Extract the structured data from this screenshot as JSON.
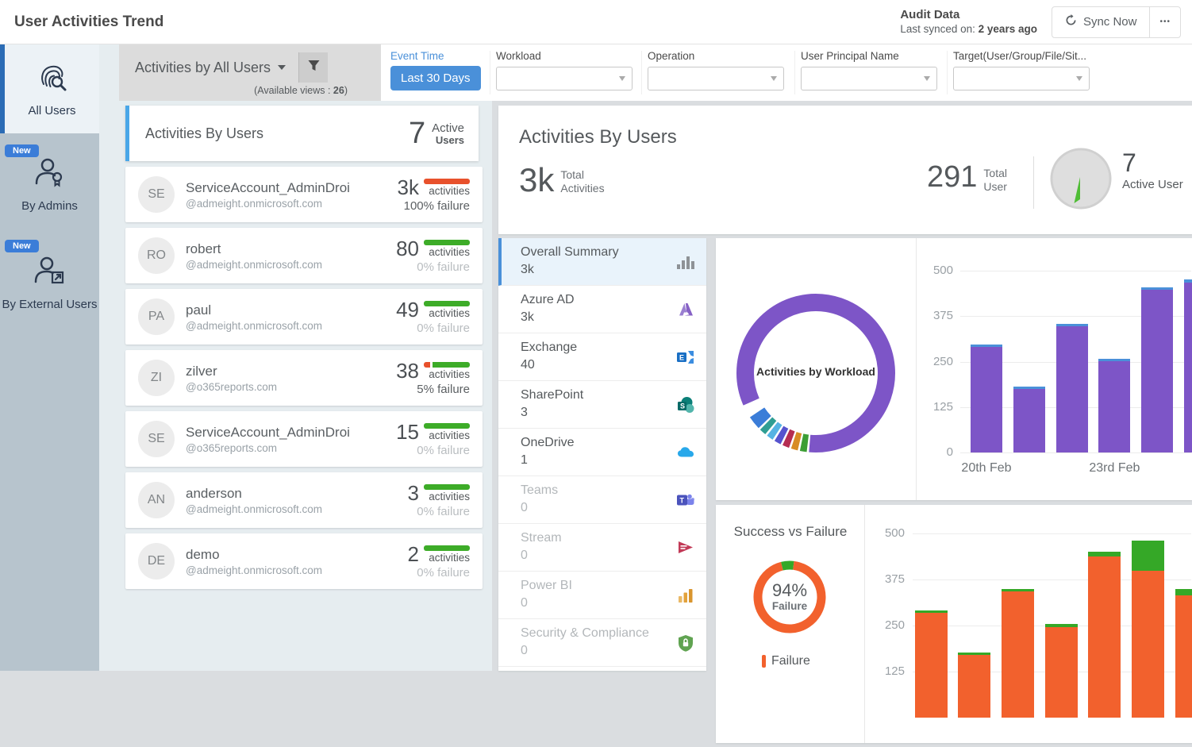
{
  "header": {
    "title": "User Activities Trend",
    "audit_label": "Audit Data",
    "last_synced_prefix": "Last synced on:",
    "last_synced_value": "2 years ago",
    "sync_button": "Sync Now",
    "more_button": "•••"
  },
  "sidebar": {
    "items": [
      {
        "label": "All Users",
        "badge": "",
        "selected": true
      },
      {
        "label": "By Admins",
        "badge": "New",
        "selected": false
      },
      {
        "label": "By External Users",
        "badge": "New",
        "selected": false
      }
    ]
  },
  "view_selector": {
    "title": "Activities by All Users",
    "note_prefix": "(Available views : ",
    "note_count": "26",
    "note_suffix": ")"
  },
  "filters": {
    "event_time_label": "Event Time",
    "event_time_value": "Last 30 Days",
    "fields": [
      {
        "label": "Workload",
        "value": ""
      },
      {
        "label": "Operation",
        "value": ""
      },
      {
        "label": "User Principal Name",
        "value": ""
      },
      {
        "label": "Target(User/Group/File/Sit...",
        "value": ""
      }
    ]
  },
  "list_header": {
    "title": "Activities By Users",
    "value": "7",
    "label_top": "Active",
    "label_bottom": "Users"
  },
  "users": [
    {
      "initials": "SE",
      "name": "ServiceAccount_AdminDroid",
      "email": "@admeight.onmicrosoft.com",
      "count": "3k",
      "unit": "activities",
      "failure_text": "100% failure",
      "failure_pct": 100
    },
    {
      "initials": "RO",
      "name": "robert",
      "email": "@admeight.onmicrosoft.com",
      "count": "80",
      "unit": "activities",
      "failure_text": "0% failure",
      "failure_pct": 0
    },
    {
      "initials": "PA",
      "name": "paul",
      "email": "@admeight.onmicrosoft.com",
      "count": "49",
      "unit": "activities",
      "failure_text": "0% failure",
      "failure_pct": 0
    },
    {
      "initials": "ZI",
      "name": "zilver",
      "email": "@o365reports.com",
      "count": "38",
      "unit": "activities",
      "failure_text": "5% failure",
      "failure_pct": 5
    },
    {
      "initials": "SE",
      "name": "ServiceAccount_AdminDroid",
      "email": "@o365reports.com",
      "count": "15",
      "unit": "activities",
      "failure_text": "0% failure",
      "failure_pct": 0
    },
    {
      "initials": "AN",
      "name": "anderson",
      "email": "@admeight.onmicrosoft.com",
      "count": "3",
      "unit": "activities",
      "failure_text": "0% failure",
      "failure_pct": 0
    },
    {
      "initials": "DE",
      "name": "demo",
      "email": "@admeight.onmicrosoft.com",
      "count": "2",
      "unit": "activities",
      "failure_text": "0% failure",
      "failure_pct": 0
    }
  ],
  "summary": {
    "title": "Activities By Users",
    "total_activities": {
      "value": "3k",
      "label_top": "Total",
      "label_bottom": "Activities"
    },
    "total_users": {
      "value": "291",
      "label_top": "Total",
      "label_bottom": "User"
    },
    "active_users": {
      "value": "7",
      "label": "Active User"
    }
  },
  "workloads": [
    {
      "name": "Overall Summary",
      "value": "3k",
      "icon": "overall-summary-icon",
      "selected": true,
      "muted": false
    },
    {
      "name": "Azure AD",
      "value": "3k",
      "icon": "azure-ad-icon",
      "selected": false,
      "muted": false
    },
    {
      "name": "Exchange",
      "value": "40",
      "icon": "exchange-icon",
      "selected": false,
      "muted": false
    },
    {
      "name": "SharePoint",
      "value": "3",
      "icon": "sharepoint-icon",
      "selected": false,
      "muted": false
    },
    {
      "name": "OneDrive",
      "value": "1",
      "icon": "onedrive-icon",
      "selected": false,
      "muted": false
    },
    {
      "name": "Teams",
      "value": "0",
      "icon": "teams-icon",
      "selected": false,
      "muted": true
    },
    {
      "name": "Stream",
      "value": "0",
      "icon": "stream-icon",
      "selected": false,
      "muted": true
    },
    {
      "name": "Power BI",
      "value": "0",
      "icon": "power-bi-icon",
      "selected": false,
      "muted": true
    },
    {
      "name": "Security & Compliance",
      "value": "0",
      "icon": "security-compliance-icon",
      "selected": false,
      "muted": true
    }
  ],
  "colors": {
    "accent_blue": "#4a90d9",
    "purple": "#7d55c7",
    "orange": "#f2612d",
    "green": "#35a827",
    "bar_green": "#3dac28",
    "bar_red": "#e8512c"
  },
  "chart_data": [
    {
      "id": "workload-donut",
      "type": "pie",
      "center_label": "Activities by Workload",
      "start_deg": 246,
      "gap_deg": 1.6,
      "slices": [
        {
          "name": "Azure AD (dominant)",
          "color": "#7d55c7",
          "deg": 299
        },
        {
          "name": "slice-green",
          "color": "#3c9e35",
          "deg": 5
        },
        {
          "name": "slice-amber",
          "color": "#d88c25",
          "deg": 5
        },
        {
          "name": "slice-crimson",
          "color": "#b52d52",
          "deg": 5
        },
        {
          "name": "slice-indigo",
          "color": "#5653ce",
          "deg": 5
        },
        {
          "name": "slice-lightblue",
          "color": "#55b3e3",
          "deg": 5
        },
        {
          "name": "slice-teal",
          "color": "#2f9e93",
          "deg": 5
        },
        {
          "name": "slice-blue",
          "color": "#3b7dd8",
          "deg": 10
        }
      ]
    },
    {
      "id": "activities-trend-bars",
      "type": "bar",
      "stacked": true,
      "ylim": [
        0,
        500
      ],
      "yticks": [
        0,
        125,
        250,
        375,
        500
      ],
      "x_tick_labels": [
        {
          "index": 0,
          "label": "20th Feb"
        },
        {
          "index": 3,
          "label": "23rd Feb"
        }
      ],
      "series": [
        {
          "name": "activities",
          "color": "#7d55c7",
          "values": [
            290,
            175,
            348,
            250,
            448,
            468
          ]
        },
        {
          "name": "secondary",
          "color": "#4a90d9",
          "values": [
            4,
            5,
            5,
            4,
            5,
            8
          ]
        }
      ]
    },
    {
      "id": "success-failure-donut",
      "type": "pie",
      "title": "Success vs Failure",
      "center_value": "94%",
      "center_label": "Failure",
      "start_deg": -14,
      "gap_deg": 0,
      "slices": [
        {
          "name": "Success",
          "color": "#35a827",
          "deg": 21
        },
        {
          "name": "Failure",
          "color": "#f2612d",
          "deg": 339
        }
      ],
      "legend": [
        {
          "label": "Failure",
          "color": "#f2612d"
        }
      ]
    },
    {
      "id": "success-failure-bars",
      "type": "bar",
      "stacked": true,
      "ylim": [
        0,
        500
      ],
      "yticks": [
        125,
        250,
        375,
        500
      ],
      "series": [
        {
          "name": "Failure",
          "color": "#f2612d",
          "values": [
            285,
            170,
            343,
            245,
            438,
            398,
            332
          ]
        },
        {
          "name": "Success",
          "color": "#35a827",
          "values": [
            6,
            6,
            6,
            8,
            14,
            82,
            18
          ]
        }
      ]
    }
  ]
}
